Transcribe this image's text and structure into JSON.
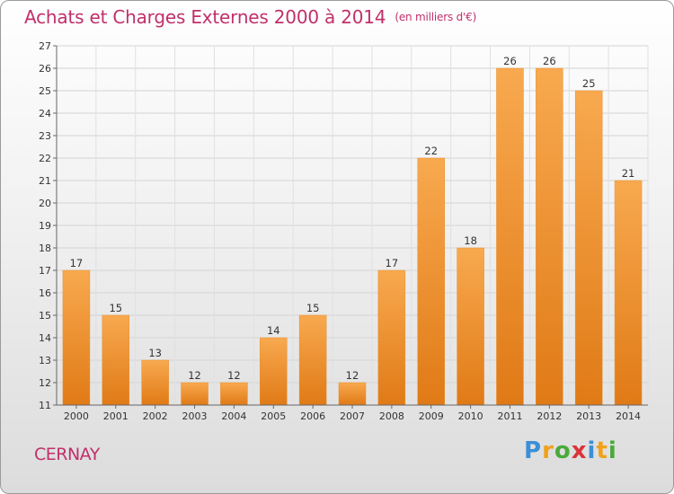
{
  "header": {
    "title": "Achats et Charges Externes 2000 à 2014",
    "subtitle": "(en milliers d'€)"
  },
  "footer": {
    "city": "CERNAY",
    "logo": [
      "P",
      "r",
      "o",
      "x",
      "i",
      "t",
      "i"
    ]
  },
  "colors": {
    "accent": "#c0306a",
    "bar_light": "#f8a94f",
    "bar_dark": "#e07a16"
  },
  "chart_data": {
    "type": "bar",
    "title": "Achats et Charges Externes 2000 à 2014",
    "subtitle": "(en milliers d'€)",
    "categories": [
      "2000",
      "2001",
      "2002",
      "2003",
      "2004",
      "2005",
      "2006",
      "2007",
      "2008",
      "2009",
      "2010",
      "2011",
      "2012",
      "2013",
      "2014"
    ],
    "values": [
      17,
      15,
      13,
      12,
      12,
      14,
      15,
      12,
      17,
      22,
      18,
      26,
      26,
      25,
      21
    ],
    "ylim": [
      11,
      27
    ],
    "yticks": [
      11,
      12,
      13,
      14,
      15,
      16,
      17,
      18,
      19,
      20,
      21,
      22,
      23,
      24,
      25,
      26,
      27
    ],
    "grid": true,
    "data_labels": true
  }
}
